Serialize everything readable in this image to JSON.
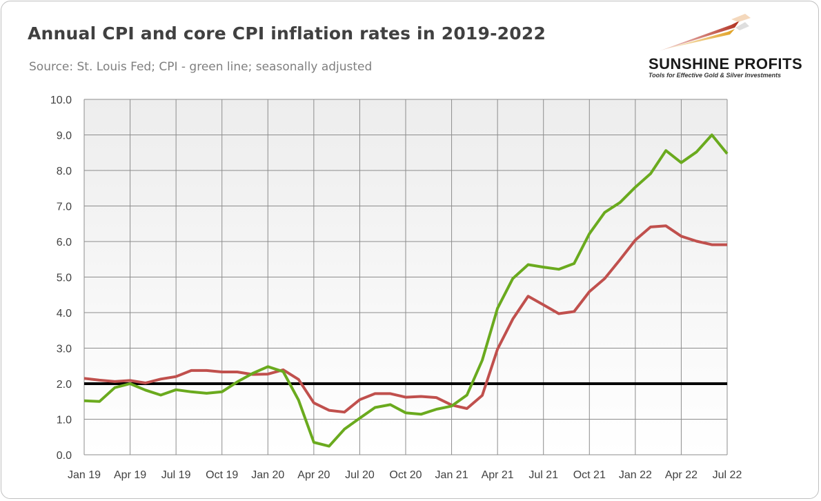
{
  "title": "Annual CPI and core CPI inflation rates in 2019-2022",
  "subtitle": "Source: St. Louis Fed; CPI - green line; seasonally adjusted",
  "logo": {
    "name": "SUNSHINE PROFITS",
    "tagline": "Tools for Effective Gold & Silver Investments"
  },
  "colors": {
    "cpi": "#6aaa1e",
    "core_cpi": "#c0504d",
    "target": "#000000",
    "plot_bg_top": "#ededed",
    "plot_bg_bottom": "#ffffff",
    "grid": "#8c8c8c"
  },
  "chart_data": {
    "type": "line",
    "title": "Annual CPI and core CPI inflation rates in 2019-2022",
    "subtitle": "Source: St. Louis Fed; CPI - green line; seasonally adjusted",
    "xlabel": "",
    "ylabel": "",
    "ylim": [
      0,
      10
    ],
    "y_ticks": [
      "0.0",
      "1.0",
      "2.0",
      "3.0",
      "4.0",
      "5.0",
      "6.0",
      "7.0",
      "8.0",
      "9.0",
      "10.0"
    ],
    "x_tick_labels": [
      "Jan 19",
      "Apr 19",
      "Jul 19",
      "Oct 19",
      "Jan 20",
      "Apr 20",
      "Jul 20",
      "Oct 20",
      "Jan 21",
      "Apr 21",
      "Jul 21",
      "Oct 21",
      "Jan 22",
      "Apr 22",
      "Jul 22"
    ],
    "grid": true,
    "legend": "none",
    "x": [
      "Jan 19",
      "Feb 19",
      "Mar 19",
      "Apr 19",
      "May 19",
      "Jun 19",
      "Jul 19",
      "Aug 19",
      "Sep 19",
      "Oct 19",
      "Nov 19",
      "Dec 19",
      "Jan 20",
      "Feb 20",
      "Mar 20",
      "Apr 20",
      "May 20",
      "Jun 20",
      "Jul 20",
      "Aug 20",
      "Sep 20",
      "Oct 20",
      "Nov 20",
      "Dec 20",
      "Jan 21",
      "Feb 21",
      "Mar 21",
      "Apr 21",
      "May 21",
      "Jun 21",
      "Jul 21",
      "Aug 21",
      "Sep 21",
      "Oct 21",
      "Nov 21",
      "Dec 21",
      "Jan 22",
      "Feb 22",
      "Mar 22",
      "Apr 22",
      "May 22",
      "Jun 22",
      "Jul 22"
    ],
    "series": [
      {
        "key": "cpi",
        "values": [
          1.52,
          1.5,
          1.89,
          2.0,
          1.82,
          1.68,
          1.83,
          1.77,
          1.73,
          1.77,
          2.05,
          2.29,
          2.48,
          2.34,
          1.54,
          0.35,
          0.24,
          0.72,
          1.03,
          1.33,
          1.41,
          1.18,
          1.14,
          1.28,
          1.37,
          1.68,
          2.66,
          4.12,
          4.96,
          5.35,
          5.28,
          5.22,
          5.38,
          6.22,
          6.82,
          7.1,
          7.53,
          7.91,
          8.56,
          8.22,
          8.52,
          9.0,
          8.47
        ]
      },
      {
        "key": "core_cpi",
        "values": [
          2.15,
          2.1,
          2.06,
          2.09,
          2.02,
          2.13,
          2.2,
          2.37,
          2.37,
          2.33,
          2.33,
          2.26,
          2.27,
          2.39,
          2.12,
          1.46,
          1.25,
          1.2,
          1.55,
          1.72,
          1.72,
          1.62,
          1.64,
          1.61,
          1.4,
          1.3,
          1.67,
          2.97,
          3.82,
          4.46,
          4.22,
          3.97,
          4.03,
          4.59,
          4.96,
          5.49,
          6.04,
          6.41,
          6.44,
          6.15,
          6.01,
          5.91,
          5.91
        ]
      },
      {
        "key": "target",
        "values": [
          2.0,
          2.0,
          2.0,
          2.0,
          2.0,
          2.0,
          2.0,
          2.0,
          2.0,
          2.0,
          2.0,
          2.0,
          2.0,
          2.0,
          2.0,
          2.0,
          2.0,
          2.0,
          2.0,
          2.0,
          2.0,
          2.0,
          2.0,
          2.0,
          2.0,
          2.0,
          2.0,
          2.0,
          2.0,
          2.0,
          2.0,
          2.0,
          2.0,
          2.0,
          2.0,
          2.0,
          2.0,
          2.0,
          2.0,
          2.0,
          2.0,
          2.0,
          2.0
        ]
      }
    ]
  }
}
